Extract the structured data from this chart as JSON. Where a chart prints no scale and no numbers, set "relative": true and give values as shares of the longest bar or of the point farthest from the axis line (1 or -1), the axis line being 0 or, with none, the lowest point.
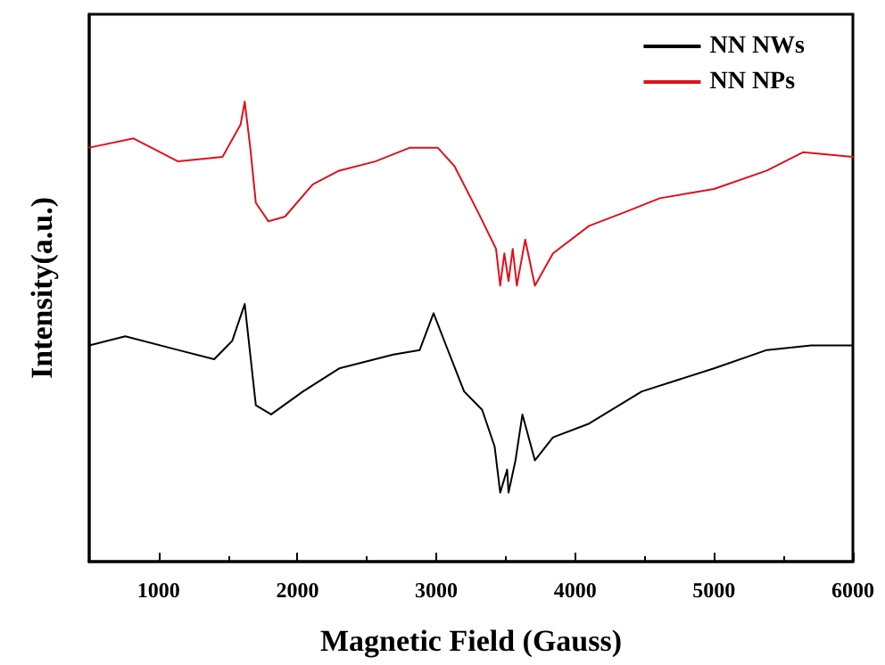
{
  "chart_data": {
    "type": "line",
    "relative": true,
    "xlabel": "Magnetic Field (Gauss)",
    "ylabel": "Intensity(a.u.)",
    "xlim": [
      500,
      6000
    ],
    "xticks": [
      1000,
      2000,
      3000,
      4000,
      5000,
      6000
    ],
    "tick_labels": "x",
    "grid": false,
    "legend": "top right",
    "marker": "none",
    "line_style": "solid",
    "series": [
      {
        "name": "NN NWs",
        "color": "#000000",
        "x": [
          500,
          760,
          1140,
          1400,
          1530,
          1620,
          1660,
          1700,
          1810,
          2040,
          2300,
          2690,
          2880,
          2980,
          3070,
          3200,
          3330,
          3420,
          3460,
          3510,
          3520,
          3570,
          3620,
          3710,
          3840,
          4100,
          4480,
          5000,
          5380,
          5700,
          6000
        ],
        "values": [
          0.47,
          0.49,
          0.46,
          0.44,
          0.48,
          0.56,
          0.45,
          0.34,
          0.32,
          0.37,
          0.42,
          0.45,
          0.46,
          0.54,
          0.47,
          0.37,
          0.33,
          0.25,
          0.15,
          0.2,
          0.15,
          0.22,
          0.32,
          0.22,
          0.27,
          0.3,
          0.37,
          0.42,
          0.46,
          0.47,
          0.47
        ]
      },
      {
        "name": "NN NPs",
        "color": "#e0101a",
        "x": [
          500,
          820,
          1140,
          1460,
          1590,
          1620,
          1660,
          1700,
          1790,
          1910,
          2110,
          2300,
          2560,
          2810,
          3010,
          3130,
          3300,
          3430,
          3460,
          3490,
          3520,
          3550,
          3580,
          3640,
          3710,
          3840,
          4100,
          4360,
          4610,
          5000,
          5380,
          5640,
          6000
        ],
        "values": [
          0.9,
          0.92,
          0.87,
          0.88,
          0.95,
          1.0,
          0.9,
          0.78,
          0.74,
          0.75,
          0.82,
          0.85,
          0.87,
          0.9,
          0.9,
          0.86,
          0.76,
          0.68,
          0.6,
          0.67,
          0.61,
          0.68,
          0.6,
          0.7,
          0.6,
          0.67,
          0.73,
          0.76,
          0.79,
          0.81,
          0.85,
          0.89,
          0.88
        ]
      }
    ]
  }
}
